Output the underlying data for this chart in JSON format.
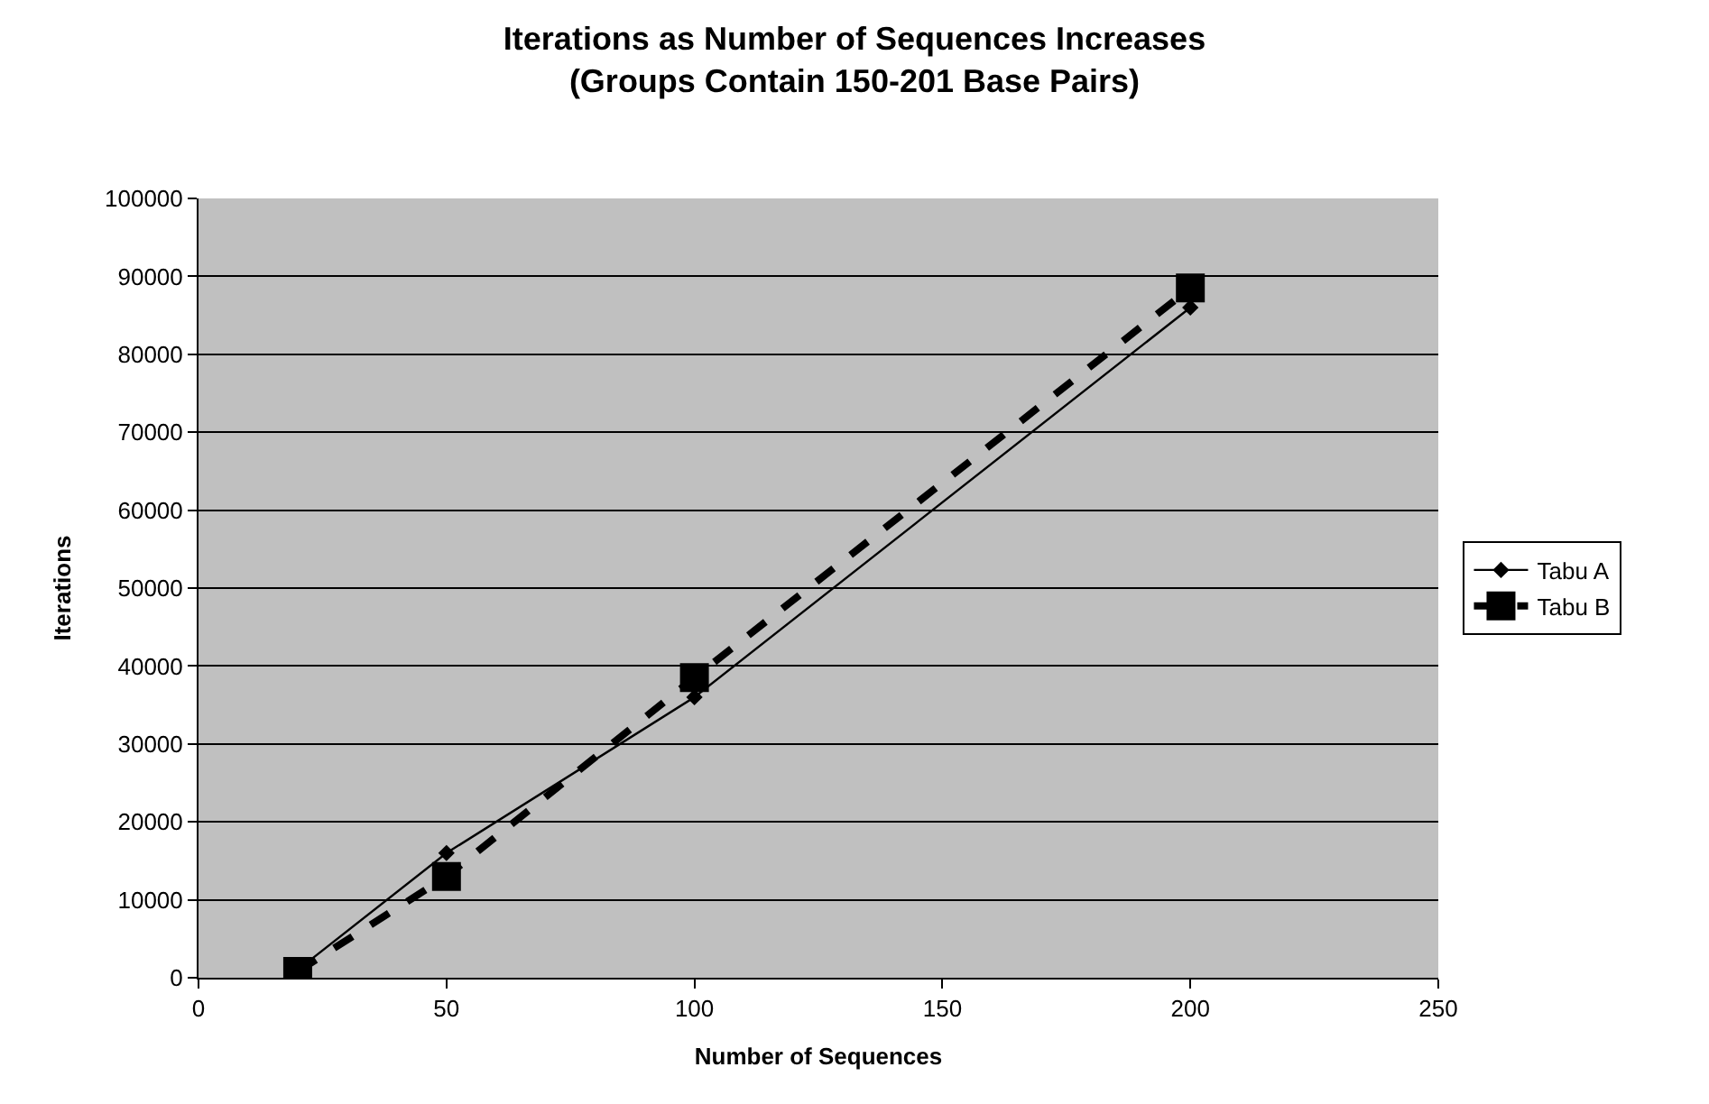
{
  "chart_data": {
    "type": "line",
    "title": "Iterations as Number of Sequences Increases\n(Groups Contain 150-201 Base Pairs)",
    "xlabel": "Number of Sequences",
    "ylabel": "Iterations",
    "x": [
      20,
      50,
      100,
      200
    ],
    "series": [
      {
        "name": "Tabu A",
        "color": "#000000",
        "values": [
          1000,
          16000,
          36000,
          86000
        ],
        "marker": "diamond",
        "line_style": "solid"
      },
      {
        "name": "Tabu B",
        "color": "#000000",
        "values": [
          800,
          13000,
          38500,
          88500
        ],
        "marker": "square",
        "line_style": "dashed"
      }
    ],
    "xlim": [
      0,
      250
    ],
    "xticks": [
      0,
      50,
      100,
      150,
      200,
      250
    ],
    "ylim": [
      0,
      100000
    ],
    "yticks": [
      0,
      10000,
      20000,
      30000,
      40000,
      50000,
      60000,
      70000,
      80000,
      90000,
      100000
    ],
    "grid": "y",
    "legend": "right"
  }
}
